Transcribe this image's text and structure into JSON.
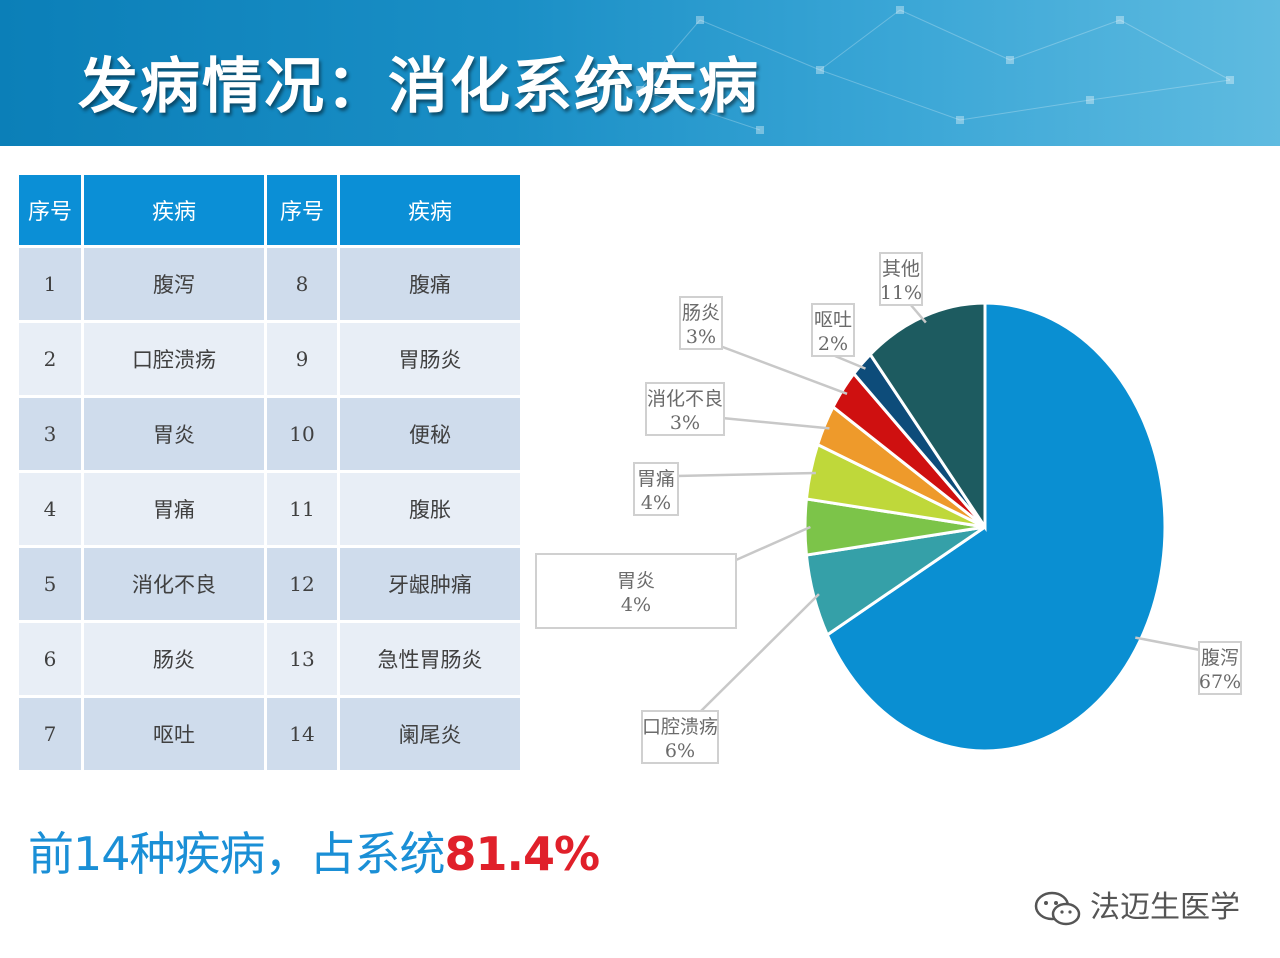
{
  "title": "发病情况：消化系统疾病",
  "table": {
    "headers": [
      "序号",
      "疾病",
      "序号",
      "疾病"
    ],
    "rows": [
      {
        "n1": "1",
        "d1": "腹泻",
        "n2": "8",
        "d2": "腹痛"
      },
      {
        "n1": "2",
        "d1": "口腔溃疡",
        "n2": "9",
        "d2": "胃肠炎"
      },
      {
        "n1": "3",
        "d1": "胃炎",
        "n2": "10",
        "d2": "便秘"
      },
      {
        "n1": "4",
        "d1": "胃痛",
        "n2": "11",
        "d2": "腹胀"
      },
      {
        "n1": "5",
        "d1": "消化不良",
        "n2": "12",
        "d2": "牙龈肿痛"
      },
      {
        "n1": "6",
        "d1": "肠炎",
        "n2": "13",
        "d2": "急性胃肠炎"
      },
      {
        "n1": "7",
        "d1": "呕吐",
        "n2": "14",
        "d2": "阑尾炎"
      }
    ]
  },
  "summary": {
    "prefix": "前14种疾病，占系统",
    "highlight": "81.4%"
  },
  "watermark": "法迈生医学",
  "chart_data": {
    "type": "pie",
    "start": "12 o'clock, clockwise",
    "slices": [
      {
        "label": "腹泻",
        "value": 67,
        "pct": "67%",
        "color": "#0a8fd2"
      },
      {
        "label": "口腔溃疡",
        "value": 6,
        "pct": "6%",
        "color": "#35a0a8"
      },
      {
        "label": "胃炎",
        "value": 4,
        "pct": "4%",
        "color": "#7cc449"
      },
      {
        "label": "胃痛",
        "value": 4,
        "pct": "4%",
        "color": "#bfd83a"
      },
      {
        "label": "消化不良",
        "value": 3,
        "pct": "3%",
        "color": "#ee9a2b"
      },
      {
        "label": "肠炎",
        "value": 3,
        "pct": "3%",
        "color": "#cf1010"
      },
      {
        "label": "呕吐",
        "value": 2,
        "pct": "2%",
        "color": "#0d4c7a"
      },
      {
        "label": "其他",
        "value": 11,
        "pct": "11%",
        "color": "#1d5b60"
      }
    ]
  }
}
